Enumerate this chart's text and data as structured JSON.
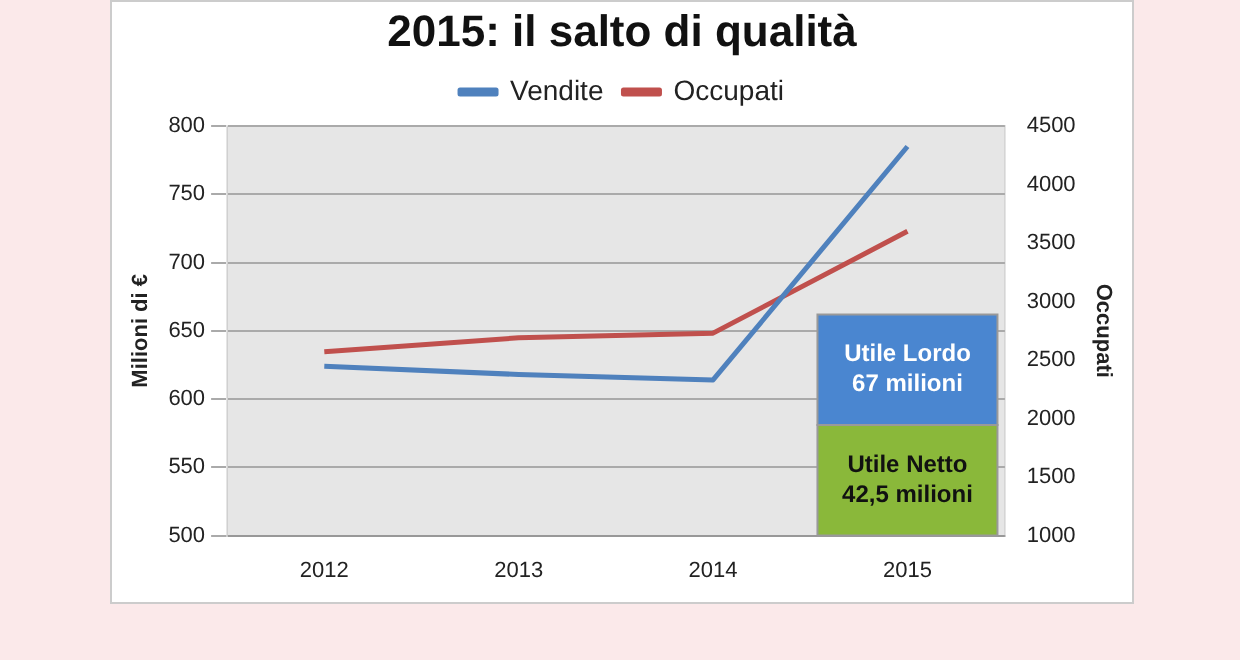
{
  "chart_data": {
    "type": "line",
    "title": "2015: il salto di qualità",
    "ylabel": "Milioni di €",
    "y2label": "Occupati",
    "categories": [
      "2012",
      "2013",
      "2014",
      "2015"
    ],
    "series": [
      {
        "name": "Vendite",
        "color": "#4f81bd",
        "values": [
          624,
          618,
          614,
          785
        ]
      },
      {
        "name": "Occupati",
        "color": "#c0504d",
        "axis": "y2",
        "values": [
          2570,
          2690,
          2730,
          3600
        ]
      }
    ],
    "ylim": [
      500,
      800
    ],
    "yticks": [
      500,
      550,
      600,
      650,
      700,
      750,
      800
    ],
    "y2lim": [
      1000,
      4500
    ],
    "y2ticks": [
      1000,
      1500,
      2000,
      2500,
      3000,
      3500,
      4000,
      4500
    ],
    "grid": "y",
    "legend": "top",
    "marker": "none",
    "annotations": [
      "Utile Lordo\n67 milioni",
      "Utile Netto\n42,5 milioni"
    ]
  }
}
